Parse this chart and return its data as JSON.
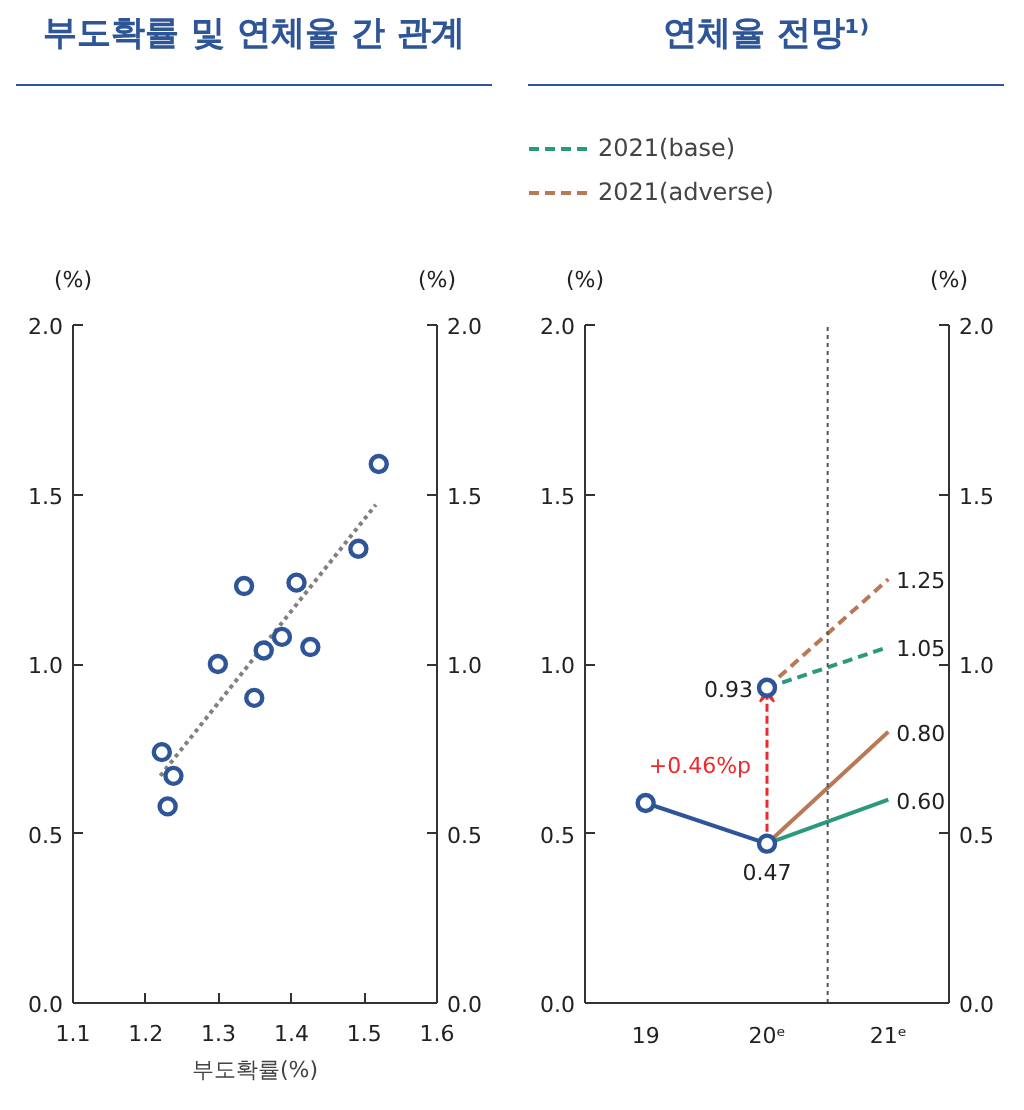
{
  "chart_data": [
    {
      "type": "scatter",
      "title": "부도확률 및 연체율 간 관계",
      "xlabel": "부도확률(%)",
      "ylabel": "(%)",
      "y2label": "(%)",
      "x": [
        1.222,
        1.238,
        1.23,
        1.299,
        1.335,
        1.349,
        1.362,
        1.387,
        1.407,
        1.426,
        1.492,
        1.52
      ],
      "series": [
        {
          "type": "scatter",
          "color": "#2e5597",
          "values": [
            0.74,
            0.67,
            0.58,
            1.0,
            1.23,
            0.9,
            1.04,
            1.08,
            1.24,
            1.05,
            1.34,
            1.59
          ]
        },
        {
          "type": "line",
          "color": "#808080",
          "line_style": "dotted",
          "marker": "none",
          "x": [
            1.22,
            1.516
          ],
          "values": [
            0.67,
            1.47
          ]
        }
      ],
      "xlim": [
        1.1,
        1.6
      ],
      "xticks": [
        1.1,
        1.2,
        1.3,
        1.4,
        1.5,
        1.6
      ],
      "ylim": [
        0,
        2
      ],
      "yticks": [
        {
          "value": 0,
          "label": "0.0"
        },
        {
          "value": 0.5,
          "label": "0.5"
        },
        {
          "value": 1,
          "label": "1.0"
        },
        {
          "value": 1.5,
          "label": "1.5"
        },
        {
          "value": 2,
          "label": "2.0"
        }
      ],
      "y2lim": [
        0,
        2
      ],
      "y2ticks": [
        {
          "value": 0,
          "label": "0.0"
        },
        {
          "value": 0.5,
          "label": "0.5"
        },
        {
          "value": 1,
          "label": "1.0"
        },
        {
          "value": 1.5,
          "label": "1.5"
        },
        {
          "value": 2,
          "label": "2.0"
        }
      ],
      "marker": "circle",
      "grid": false,
      "legend": false
    },
    {
      "type": "line",
      "title": "연체율 전망¹⁾",
      "ylabel": "(%)",
      "y2label": "(%)",
      "x": [
        19,
        20,
        21
      ],
      "xlim": [
        18.5,
        21.5
      ],
      "xticks": [
        19,
        {
          "value": 20,
          "label": "20ᵉ"
        },
        {
          "value": 21,
          "label": "21ᵉ"
        }
      ],
      "series": [
        {
          "color": "#2e5597",
          "values": [
            0.59,
            0.47,
            null
          ],
          "value_labels": [
            null,
            "0.47",
            null
          ],
          "marker": "circle"
        },
        {
          "type": "scatter",
          "color": "#2e5597",
          "values": [
            null,
            0.93,
            null
          ],
          "value_labels": [
            null,
            "0.93",
            null
          ],
          "marker": "circle"
        },
        {
          "color": "#2a9a7c",
          "values": [
            null,
            0.47,
            0.6
          ],
          "value_labels": [
            null,
            null,
            "0.60"
          ],
          "marker": "none"
        },
        {
          "color": "#b87a56",
          "values": [
            null,
            0.47,
            0.8
          ],
          "value_labels": [
            null,
            null,
            "0.80"
          ],
          "marker": "none"
        },
        {
          "name": "2021(base)",
          "color": "#2a9a7c",
          "values": [
            null,
            0.93,
            1.05
          ],
          "line_style": "dashed",
          "value_labels": [
            null,
            null,
            "1.05"
          ],
          "marker": "none"
        },
        {
          "name": "2021(adverse)",
          "color": "#b87a56",
          "values": [
            null,
            0.93,
            1.25
          ],
          "line_style": "dashed",
          "value_labels": [
            null,
            null,
            "1.25"
          ],
          "marker": "none"
        }
      ],
      "ylim": [
        0,
        2
      ],
      "yticks": [
        {
          "value": 0,
          "label": "0.0"
        },
        {
          "value": 0.5,
          "label": "0.5"
        },
        {
          "value": 1,
          "label": "1.0"
        },
        {
          "value": 1.5,
          "label": "1.5"
        },
        {
          "value": 2,
          "label": "2.0"
        }
      ],
      "y2lim": [
        0,
        2
      ],
      "y2ticks": [
        {
          "value": 0,
          "label": "0.0"
        },
        {
          "value": 0.5,
          "label": "0.5"
        },
        {
          "value": 1,
          "label": "1.0"
        },
        {
          "value": 1.5,
          "label": "1.5"
        },
        {
          "value": 2,
          "label": "2.0"
        }
      ],
      "ref_lines": [
        {
          "axis": "x",
          "value": 20.5,
          "color": "#555555",
          "line_style": "dotted"
        }
      ],
      "annotations": [
        "+0.46%p"
      ],
      "grid": false,
      "legend": "top left"
    }
  ]
}
